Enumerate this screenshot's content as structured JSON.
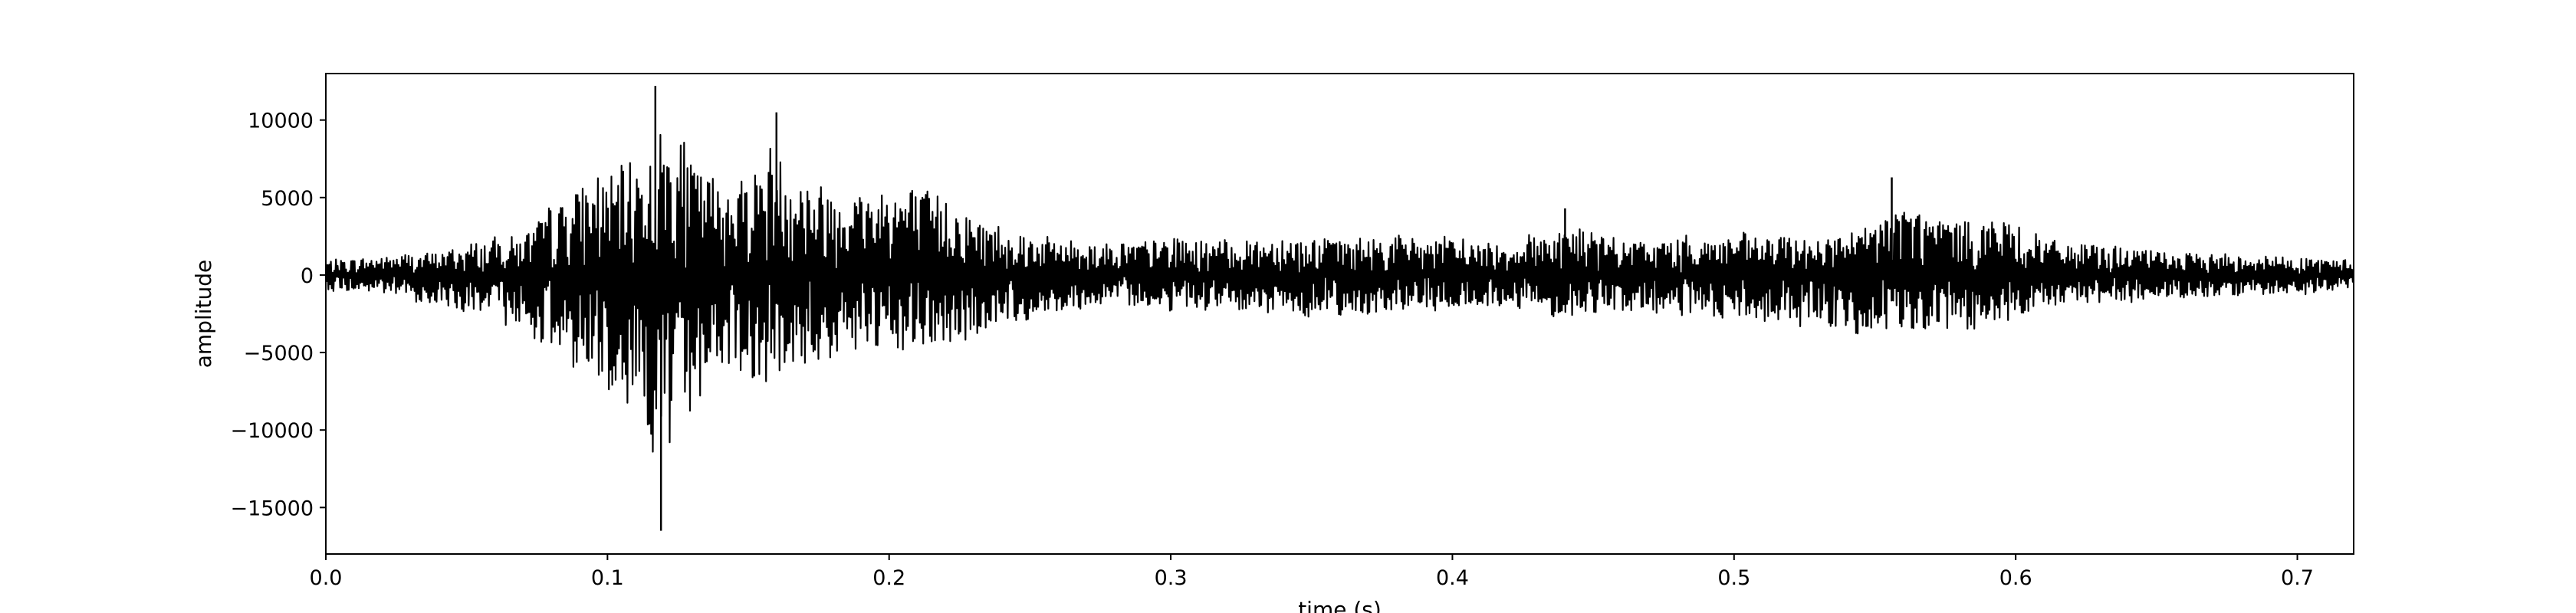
{
  "chart_data": {
    "type": "line",
    "title": "",
    "xlabel": "time (s)",
    "ylabel": "amplitude",
    "xlim": [
      0.0,
      0.72
    ],
    "ylim": [
      -18000,
      13000
    ],
    "x_ticks": [
      0.0,
      0.1,
      0.2,
      0.3,
      0.4,
      0.5,
      0.6,
      0.7
    ],
    "x_tick_labels": [
      "0.0",
      "0.1",
      "0.2",
      "0.3",
      "0.4",
      "0.5",
      "0.6",
      "0.7"
    ],
    "y_ticks": [
      10000,
      5000,
      0,
      -5000,
      -10000,
      -15000
    ],
    "y_tick_labels": [
      "10000",
      "5000",
      "0",
      "−5000",
      "−10000",
      "−15000"
    ],
    "grid": false,
    "line_color": "#000000",
    "series": [
      {
        "envelope": {
          "t": [
            0.0,
            0.02,
            0.04,
            0.06,
            0.07,
            0.08,
            0.09,
            0.1,
            0.11,
            0.12,
            0.13,
            0.14,
            0.15,
            0.16,
            0.17,
            0.18,
            0.19,
            0.2,
            0.21,
            0.22,
            0.23,
            0.24,
            0.25,
            0.26,
            0.27,
            0.28,
            0.3,
            0.32,
            0.34,
            0.36,
            0.38,
            0.4,
            0.42,
            0.44,
            0.46,
            0.48,
            0.5,
            0.52,
            0.54,
            0.55,
            0.56,
            0.57,
            0.58,
            0.59,
            0.6,
            0.61,
            0.62,
            0.64,
            0.66,
            0.68,
            0.7,
            0.72
          ],
          "upper": [
            1200,
            1500,
            2000,
            3000,
            3500,
            5500,
            7500,
            8500,
            9500,
            12000,
            10000,
            7500,
            9000,
            10500,
            8000,
            7500,
            7000,
            7500,
            7000,
            6500,
            5000,
            4000,
            3500,
            3000,
            2800,
            2600,
            3000,
            2800,
            3200,
            3000,
            3200,
            3000,
            2600,
            4200,
            2800,
            3000,
            3300,
            3200,
            3300,
            4500,
            6000,
            5000,
            4500,
            4800,
            4200,
            3000,
            2600,
            2200,
            1800,
            1700,
            1500,
            1200
          ],
          "lower": [
            -1200,
            -1500,
            -2500,
            -3500,
            -4500,
            -6500,
            -8000,
            -9500,
            -10500,
            -16500,
            -11000,
            -7500,
            -8500,
            -9000,
            -7500,
            -7000,
            -6500,
            -7000,
            -6500,
            -6000,
            -5000,
            -4000,
            -3500,
            -3000,
            -2600,
            -2500,
            -2800,
            -3000,
            -3200,
            -3400,
            -3000,
            -2800,
            -2500,
            -3500,
            -3000,
            -3200,
            -3800,
            -4000,
            -4500,
            -5500,
            -5000,
            -4800,
            -4700,
            -4500,
            -4000,
            -3000,
            -2500,
            -2200,
            -1800,
            -1700,
            -1600,
            -1000
          ]
        },
        "peaks": [
          {
            "t": 0.117,
            "value": 12200
          },
          {
            "t": 0.119,
            "value": -16500
          },
          {
            "t": 0.16,
            "value": 10500
          },
          {
            "t": 0.44,
            "value": 4300
          },
          {
            "t": 0.556,
            "value": 6300
          }
        ]
      }
    ]
  }
}
